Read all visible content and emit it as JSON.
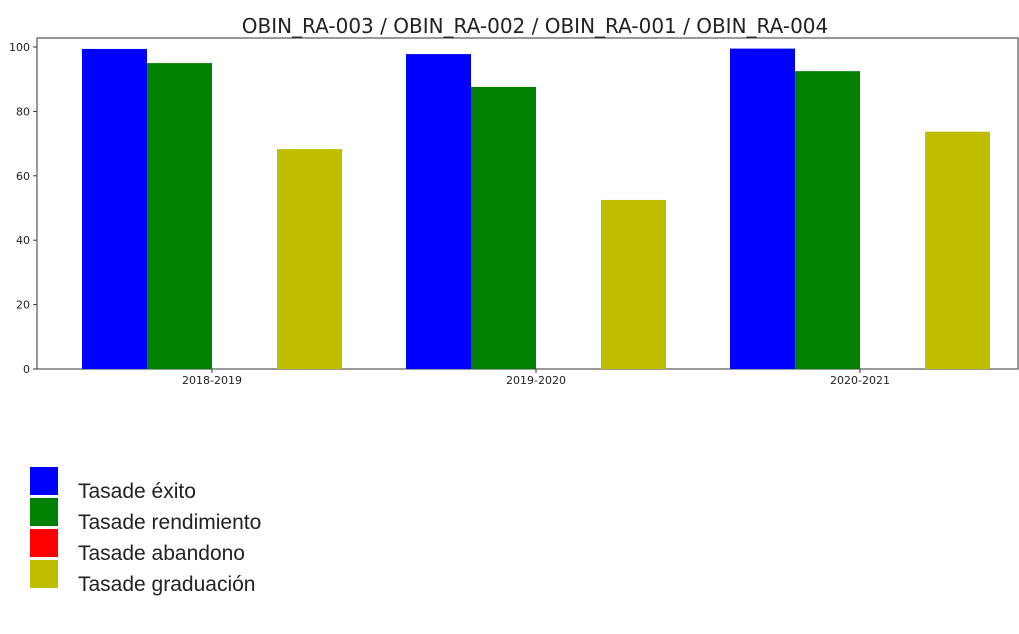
{
  "chart_data": {
    "type": "bar",
    "title": "OBIN_RA-003 / OBIN_RA-002 / OBIN_RA-001 / OBIN_RA-004",
    "xlabel": "",
    "ylabel": "",
    "categories": [
      "2018-2019",
      "2019-2020",
      "2020-2021"
    ],
    "ylim": [
      0,
      100
    ],
    "yticks": [
      "0",
      "20",
      "40",
      "60",
      "80",
      "100"
    ],
    "grid": false,
    "legend_position": "bottom-left",
    "series": [
      {
        "name": "Tasade éxito",
        "color": "#0000ff",
        "values": [
          99.4,
          97.8,
          99.5
        ]
      },
      {
        "name": "Tasade rendimiento",
        "color": "#008000",
        "values": [
          95.0,
          87.6,
          92.5
        ]
      },
      {
        "name": "Tasade abandono",
        "color": "#ff0000",
        "values": [
          0,
          0,
          0
        ]
      },
      {
        "name": "Tasade graduación",
        "color": "#bfbf00",
        "values": [
          68.3,
          52.5,
          73.7
        ]
      }
    ]
  }
}
